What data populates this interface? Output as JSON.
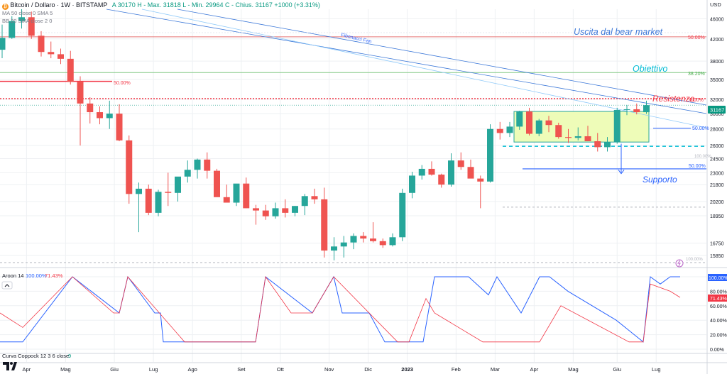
{
  "header": {
    "symbol": "Bitcoin / Dollaro · 1W · BITSTAMP",
    "ohlc": "A 30170  H - Max. 31818  L - Min. 29964  C - Chius. 31167 +1000 (+3.31%)",
    "ma_label": "MA 50 close 0 SMA 5",
    "bb_label": "BB 20 SMA close 2 0",
    "currency": "USD",
    "price_badge": "31167"
  },
  "annotations": {
    "bear_exit": "Uscita dal bear market",
    "target": "Obiettivo",
    "resistance": "Resistenza",
    "support": "Supporto",
    "fib_fan": "Fibonacci Fan",
    "fib_50_top": "50.00%",
    "fib_382": "38.20%",
    "fib_50_left": "50.00%",
    "fib_50_right": "50.00%",
    "fib_50_low": "50.00%",
    "fib_0_right": "0.00%",
    "fib_100_a": "100.00%",
    "fib_100_b": "100.00%"
  },
  "aroon": {
    "label": "Aroon 14",
    "up_value": "100.00%",
    "down_value": "71.43%",
    "up_color": "#2962ff",
    "down_color": "#f23645"
  },
  "coppock": {
    "label": "Curva Coppock 12 3 6 close",
    "value": "9"
  },
  "colors": {
    "up": "#26a69a",
    "down": "#ef5350",
    "grid": "#eef0f3",
    "rect_fill": "#eefcb8",
    "rect_border": "#26a69a"
  },
  "chart_data": {
    "type": "candlestick",
    "title": "Bitcoin / Dollaro · 1W · BITSTAMP",
    "y_axis": {
      "ticks": [
        15850,
        16750,
        18950,
        20200,
        21800,
        23000,
        24500,
        26000,
        28000,
        30000,
        32000,
        35000,
        38000,
        42000,
        46000
      ],
      "tick_labels": [
        "15850",
        "16750",
        "18950",
        "20200",
        "21800",
        "23000",
        "24500",
        "26000",
        "28000",
        "30000",
        "32000",
        "35000",
        "38000",
        "42000",
        "46000"
      ],
      "scale": "log",
      "range": [
        15200,
        48000
      ]
    },
    "x_axis": {
      "tick_labels": [
        "Apr",
        "Mag",
        "Giu",
        "Lug",
        "Ago",
        "Set",
        "Ott",
        "Nov",
        "Dic",
        "2023",
        "Feb",
        "Mar",
        "Apr",
        "Mag",
        "Giu",
        "Lug"
      ],
      "tick_index": [
        2.5,
        6.5,
        11.5,
        15.5,
        19.5,
        24.5,
        28.5,
        33.5,
        37.5,
        41.5,
        46.5,
        50.5,
        54.5,
        58.5,
        63,
        67
      ]
    },
    "candles": [
      {
        "o": 40000,
        "h": 44800,
        "l": 38500,
        "c": 42200
      },
      {
        "o": 42200,
        "h": 46500,
        "l": 42000,
        "c": 45500
      },
      {
        "o": 45500,
        "h": 48000,
        "l": 44000,
        "c": 46300
      },
      {
        "o": 46300,
        "h": 47500,
        "l": 42000,
        "c": 42600
      },
      {
        "o": 42600,
        "h": 43500,
        "l": 38800,
        "c": 39600
      },
      {
        "o": 39600,
        "h": 41500,
        "l": 38500,
        "c": 39200
      },
      {
        "o": 39200,
        "h": 40200,
        "l": 37500,
        "c": 38400
      },
      {
        "o": 38400,
        "h": 39800,
        "l": 34200,
        "c": 34600
      },
      {
        "o": 34600,
        "h": 35500,
        "l": 26000,
        "c": 31400
      },
      {
        "o": 31400,
        "h": 32300,
        "l": 28700,
        "c": 30200
      },
      {
        "o": 30200,
        "h": 31000,
        "l": 28600,
        "c": 29400
      },
      {
        "o": 29400,
        "h": 31800,
        "l": 28000,
        "c": 30000
      },
      {
        "o": 30000,
        "h": 31300,
        "l": 26500,
        "c": 26600
      },
      {
        "o": 26600,
        "h": 27200,
        "l": 20000,
        "c": 20900
      },
      {
        "o": 20900,
        "h": 22000,
        "l": 17600,
        "c": 21400
      },
      {
        "o": 21400,
        "h": 21800,
        "l": 19000,
        "c": 19200
      },
      {
        "o": 19200,
        "h": 21300,
        "l": 18900,
        "c": 21100
      },
      {
        "o": 21100,
        "h": 23000,
        "l": 19800,
        "c": 21000
      },
      {
        "o": 21000,
        "h": 22500,
        "l": 20200,
        "c": 22600
      },
      {
        "o": 22600,
        "h": 24300,
        "l": 22000,
        "c": 23300
      },
      {
        "o": 23300,
        "h": 24500,
        "l": 22400,
        "c": 24400
      },
      {
        "o": 24400,
        "h": 25200,
        "l": 22400,
        "c": 23200
      },
      {
        "o": 23200,
        "h": 23400,
        "l": 20800,
        "c": 20600
      },
      {
        "o": 20600,
        "h": 21800,
        "l": 20300,
        "c": 20100
      },
      {
        "o": 20100,
        "h": 21800,
        "l": 19800,
        "c": 21900
      },
      {
        "o": 21900,
        "h": 22500,
        "l": 19600,
        "c": 19600
      },
      {
        "o": 19600,
        "h": 19900,
        "l": 18200,
        "c": 19400
      },
      {
        "o": 19400,
        "h": 19900,
        "l": 18600,
        "c": 18900
      },
      {
        "o": 18900,
        "h": 20100,
        "l": 18700,
        "c": 19600
      },
      {
        "o": 19600,
        "h": 20400,
        "l": 18800,
        "c": 19200
      },
      {
        "o": 19200,
        "h": 19800,
        "l": 18900,
        "c": 19800
      },
      {
        "o": 19800,
        "h": 20900,
        "l": 19000,
        "c": 20700
      },
      {
        "o": 20700,
        "h": 21400,
        "l": 20000,
        "c": 20400
      },
      {
        "o": 20400,
        "h": 21500,
        "l": 15700,
        "c": 16200
      },
      {
        "o": 16200,
        "h": 17200,
        "l": 15500,
        "c": 16500
      },
      {
        "o": 16500,
        "h": 17300,
        "l": 15700,
        "c": 16800
      },
      {
        "o": 16800,
        "h": 17500,
        "l": 16300,
        "c": 17300
      },
      {
        "o": 17300,
        "h": 17600,
        "l": 16800,
        "c": 17100
      },
      {
        "o": 17100,
        "h": 18400,
        "l": 16800,
        "c": 16900
      },
      {
        "o": 16900,
        "h": 17100,
        "l": 16400,
        "c": 16600
      },
      {
        "o": 16600,
        "h": 17500,
        "l": 16500,
        "c": 17200
      },
      {
        "o": 17200,
        "h": 21400,
        "l": 16900,
        "c": 21000
      },
      {
        "o": 21000,
        "h": 23100,
        "l": 20500,
        "c": 22700
      },
      {
        "o": 22700,
        "h": 23800,
        "l": 22300,
        "c": 23400
      },
      {
        "o": 23400,
        "h": 24200,
        "l": 22700,
        "c": 22800
      },
      {
        "o": 22800,
        "h": 22900,
        "l": 21500,
        "c": 21800
      },
      {
        "o": 21800,
        "h": 25100,
        "l": 21600,
        "c": 24300
      },
      {
        "o": 24300,
        "h": 25200,
        "l": 23300,
        "c": 23600
      },
      {
        "o": 23600,
        "h": 24400,
        "l": 22500,
        "c": 22400
      },
      {
        "o": 22400,
        "h": 22700,
        "l": 19600,
        "c": 22100
      },
      {
        "o": 22100,
        "h": 28600,
        "l": 22000,
        "c": 28000
      },
      {
        "o": 28000,
        "h": 28900,
        "l": 26700,
        "c": 27500
      },
      {
        "o": 27500,
        "h": 28900,
        "l": 27000,
        "c": 28300
      },
      {
        "o": 28300,
        "h": 30400,
        "l": 27900,
        "c": 30300
      },
      {
        "o": 30300,
        "h": 30800,
        "l": 27200,
        "c": 27400
      },
      {
        "o": 27400,
        "h": 29300,
        "l": 27100,
        "c": 29100
      },
      {
        "o": 29100,
        "h": 29700,
        "l": 27600,
        "c": 28500
      },
      {
        "o": 28500,
        "h": 28800,
        "l": 26800,
        "c": 27000
      },
      {
        "o": 27000,
        "h": 28000,
        "l": 26300,
        "c": 26900
      },
      {
        "o": 26900,
        "h": 28200,
        "l": 26600,
        "c": 27100
      },
      {
        "o": 27100,
        "h": 28400,
        "l": 26500,
        "c": 26500
      },
      {
        "o": 26500,
        "h": 27500,
        "l": 25300,
        "c": 25800
      },
      {
        "o": 25800,
        "h": 27000,
        "l": 25300,
        "c": 26400
      },
      {
        "o": 26400,
        "h": 30800,
        "l": 26200,
        "c": 30500
      },
      {
        "o": 30500,
        "h": 31200,
        "l": 29800,
        "c": 30600
      },
      {
        "o": 30600,
        "h": 31400,
        "l": 29900,
        "c": 30200
      },
      {
        "o": 30200,
        "h": 31800,
        "l": 29964,
        "c": 31167
      }
    ],
    "levels": {
      "fib_50_top": 42400,
      "fib_382": 36100,
      "fib_50_left": 34700,
      "resistance": 32100,
      "fib_50_right": 28100,
      "fib_50_low": 23400,
      "support_line": 23400
    }
  }
}
